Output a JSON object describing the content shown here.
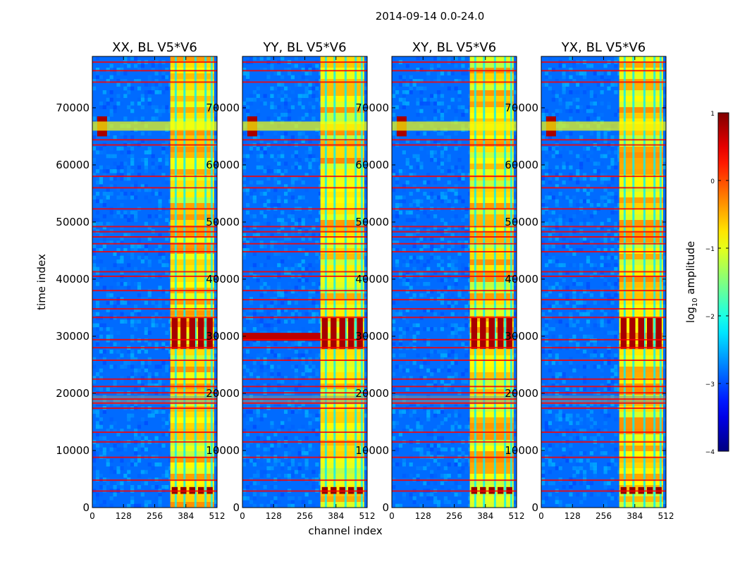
{
  "chart_data": {
    "type": "heatmap",
    "suptitle": "2014-09-14 0.0-24.0",
    "xlabel": "channel index",
    "ylabel": "time index",
    "x_range": [
      0,
      512
    ],
    "y_range": [
      0,
      79000
    ],
    "x_ticks": [
      0,
      128,
      256,
      384,
      512
    ],
    "y_ticks": [
      0,
      10000,
      20000,
      30000,
      40000,
      50000,
      60000,
      70000
    ],
    "panels": [
      {
        "title": "XX, BL V5*V6",
        "strong_band": [
          320,
          500
        ],
        "flare_y": 30000,
        "low_band_flare": false
      },
      {
        "title": "YY, BL V5*V6",
        "strong_band": [
          320,
          500
        ],
        "flare_y": 30000,
        "low_band_flare": true
      },
      {
        "title": "XY, BL V5*V6",
        "strong_band": [
          320,
          500
        ],
        "flare_y": 30000,
        "low_band_flare": false
      },
      {
        "title": "YX, BL V5*V6",
        "strong_band": [
          320,
          500
        ],
        "flare_y": 30000,
        "low_band_flare": false
      }
    ],
    "colorbar": {
      "label": "log10 amplitude",
      "label_main": "log",
      "label_sub": "10",
      "label_rest": " amplitude",
      "range": [
        -4,
        1
      ],
      "ticks": [
        1,
        0,
        -1,
        -2,
        -3,
        -4
      ],
      "tick_labels": [
        "1",
        "0",
        "−1",
        "−2",
        "−3",
        "−4"
      ],
      "colormap": "jet"
    },
    "rfi_rows": [
      2900,
      4800,
      8800,
      11500,
      13200,
      17400,
      18300,
      19000,
      20100,
      21200,
      22500,
      25800,
      28000,
      29400,
      33300,
      34800,
      36400,
      38000,
      40500,
      41300,
      44800,
      46200,
      47400,
      48300,
      49200,
      52300,
      56000,
      58000,
      63500,
      64400,
      74500,
      76500,
      78000
    ]
  }
}
